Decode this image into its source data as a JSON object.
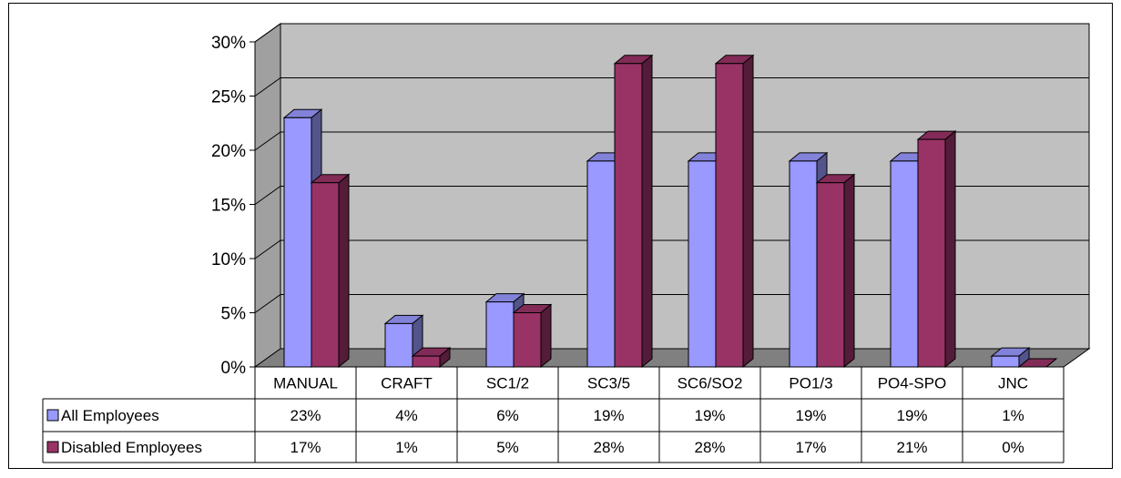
{
  "chart_data": {
    "type": "bar",
    "categories": [
      "MANUAL",
      "CRAFT",
      "SC1/2",
      "SC3/5",
      "SC6/SO2",
      "PO1/3",
      "PO4-SPO",
      "JNC"
    ],
    "series": [
      {
        "name": "All Employees",
        "values": [
          23,
          4,
          6,
          19,
          19,
          19,
          19,
          1
        ],
        "labels": [
          "23%",
          "4%",
          "6%",
          "19%",
          "19%",
          "19%",
          "19%",
          "1%"
        ],
        "color": "#9999ff"
      },
      {
        "name": "Disabled Employees",
        "values": [
          17,
          1,
          5,
          28,
          28,
          17,
          21,
          0
        ],
        "labels": [
          "17%",
          "1%",
          "5%",
          "28%",
          "28%",
          "17%",
          "21%",
          "0%"
        ],
        "color": "#993366"
      }
    ],
    "ylim": [
      0,
      30
    ],
    "y_ticks": [
      "0%",
      "5%",
      "10%",
      "15%",
      "20%",
      "25%",
      "30%"
    ],
    "grid": true,
    "legend": "data-table",
    "wall_color": "#c0c0c0",
    "floor_color": "#808080"
  }
}
